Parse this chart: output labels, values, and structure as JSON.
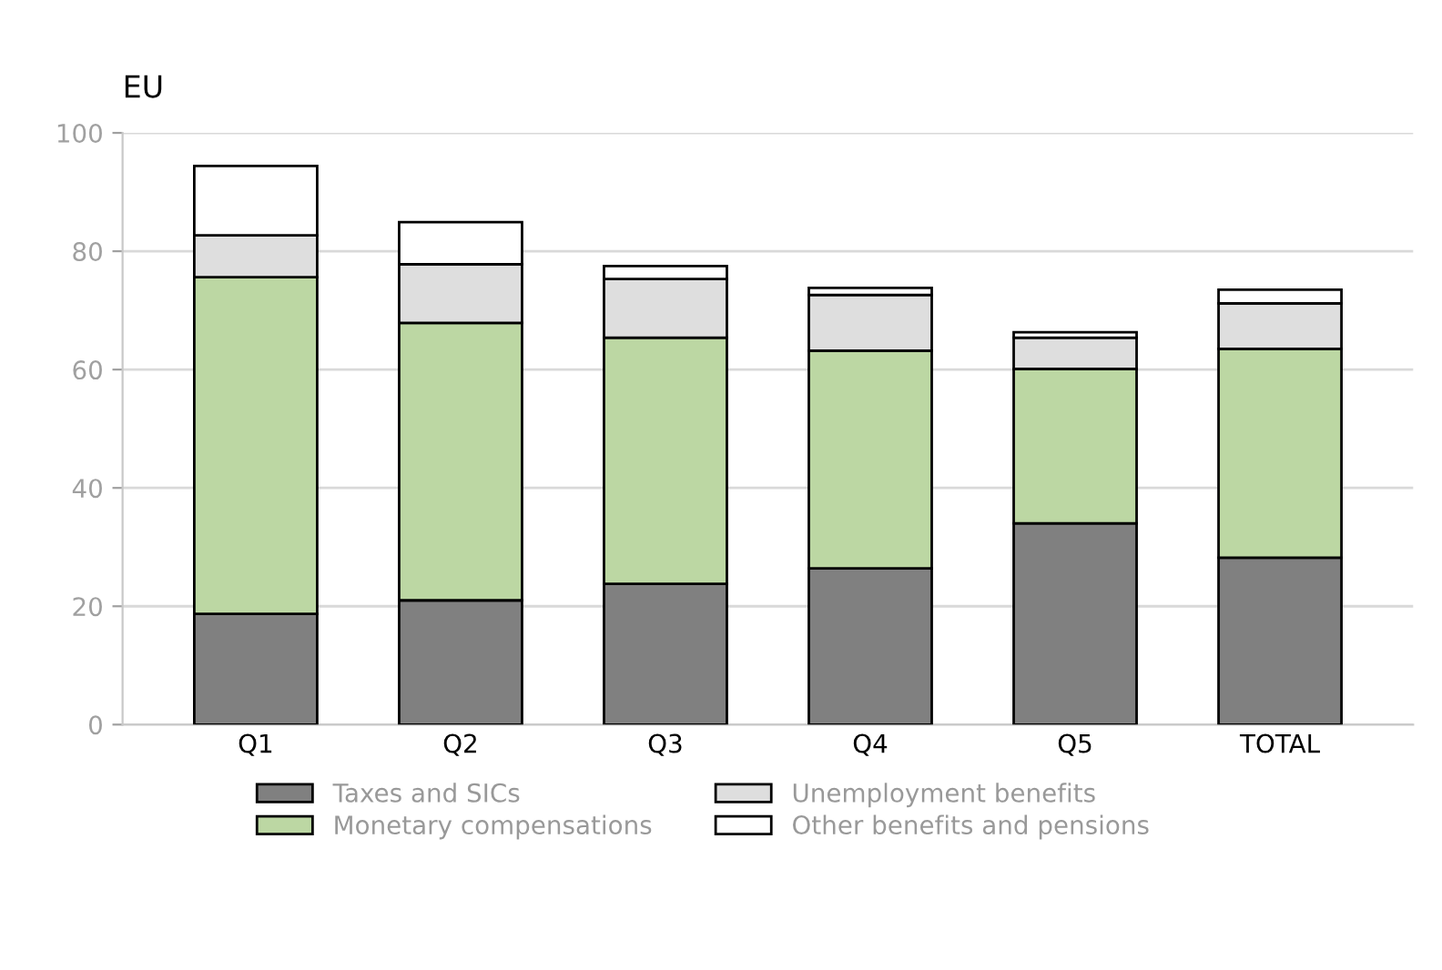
{
  "chart_data": {
    "type": "bar",
    "title": "EU",
    "stacked": true,
    "categories": [
      "Q1",
      "Q2",
      "Q3",
      "Q4",
      "Q5",
      "TOTAL"
    ],
    "series": [
      {
        "name": "Taxes and SICs",
        "color": "#808080",
        "values": [
          18.7,
          21.0,
          23.8,
          26.4,
          34.0,
          28.2
        ]
      },
      {
        "name": "Monetary compensations",
        "color": "#bcd7a3",
        "values": [
          56.9,
          46.9,
          41.6,
          36.8,
          26.1,
          35.3
        ]
      },
      {
        "name": "Unemployment benefits",
        "color": "#dedede",
        "values": [
          7.1,
          9.9,
          9.9,
          9.4,
          5.3,
          7.7
        ]
      },
      {
        "name": "Other benefits and pensions",
        "color": "#ffffff",
        "values": [
          11.7,
          7.1,
          2.2,
          1.2,
          0.9,
          2.3
        ]
      }
    ],
    "ylim": [
      0,
      100
    ],
    "yticks": [
      0,
      20,
      40,
      60,
      80,
      100
    ],
    "grid": "y",
    "legend": "bottom"
  }
}
